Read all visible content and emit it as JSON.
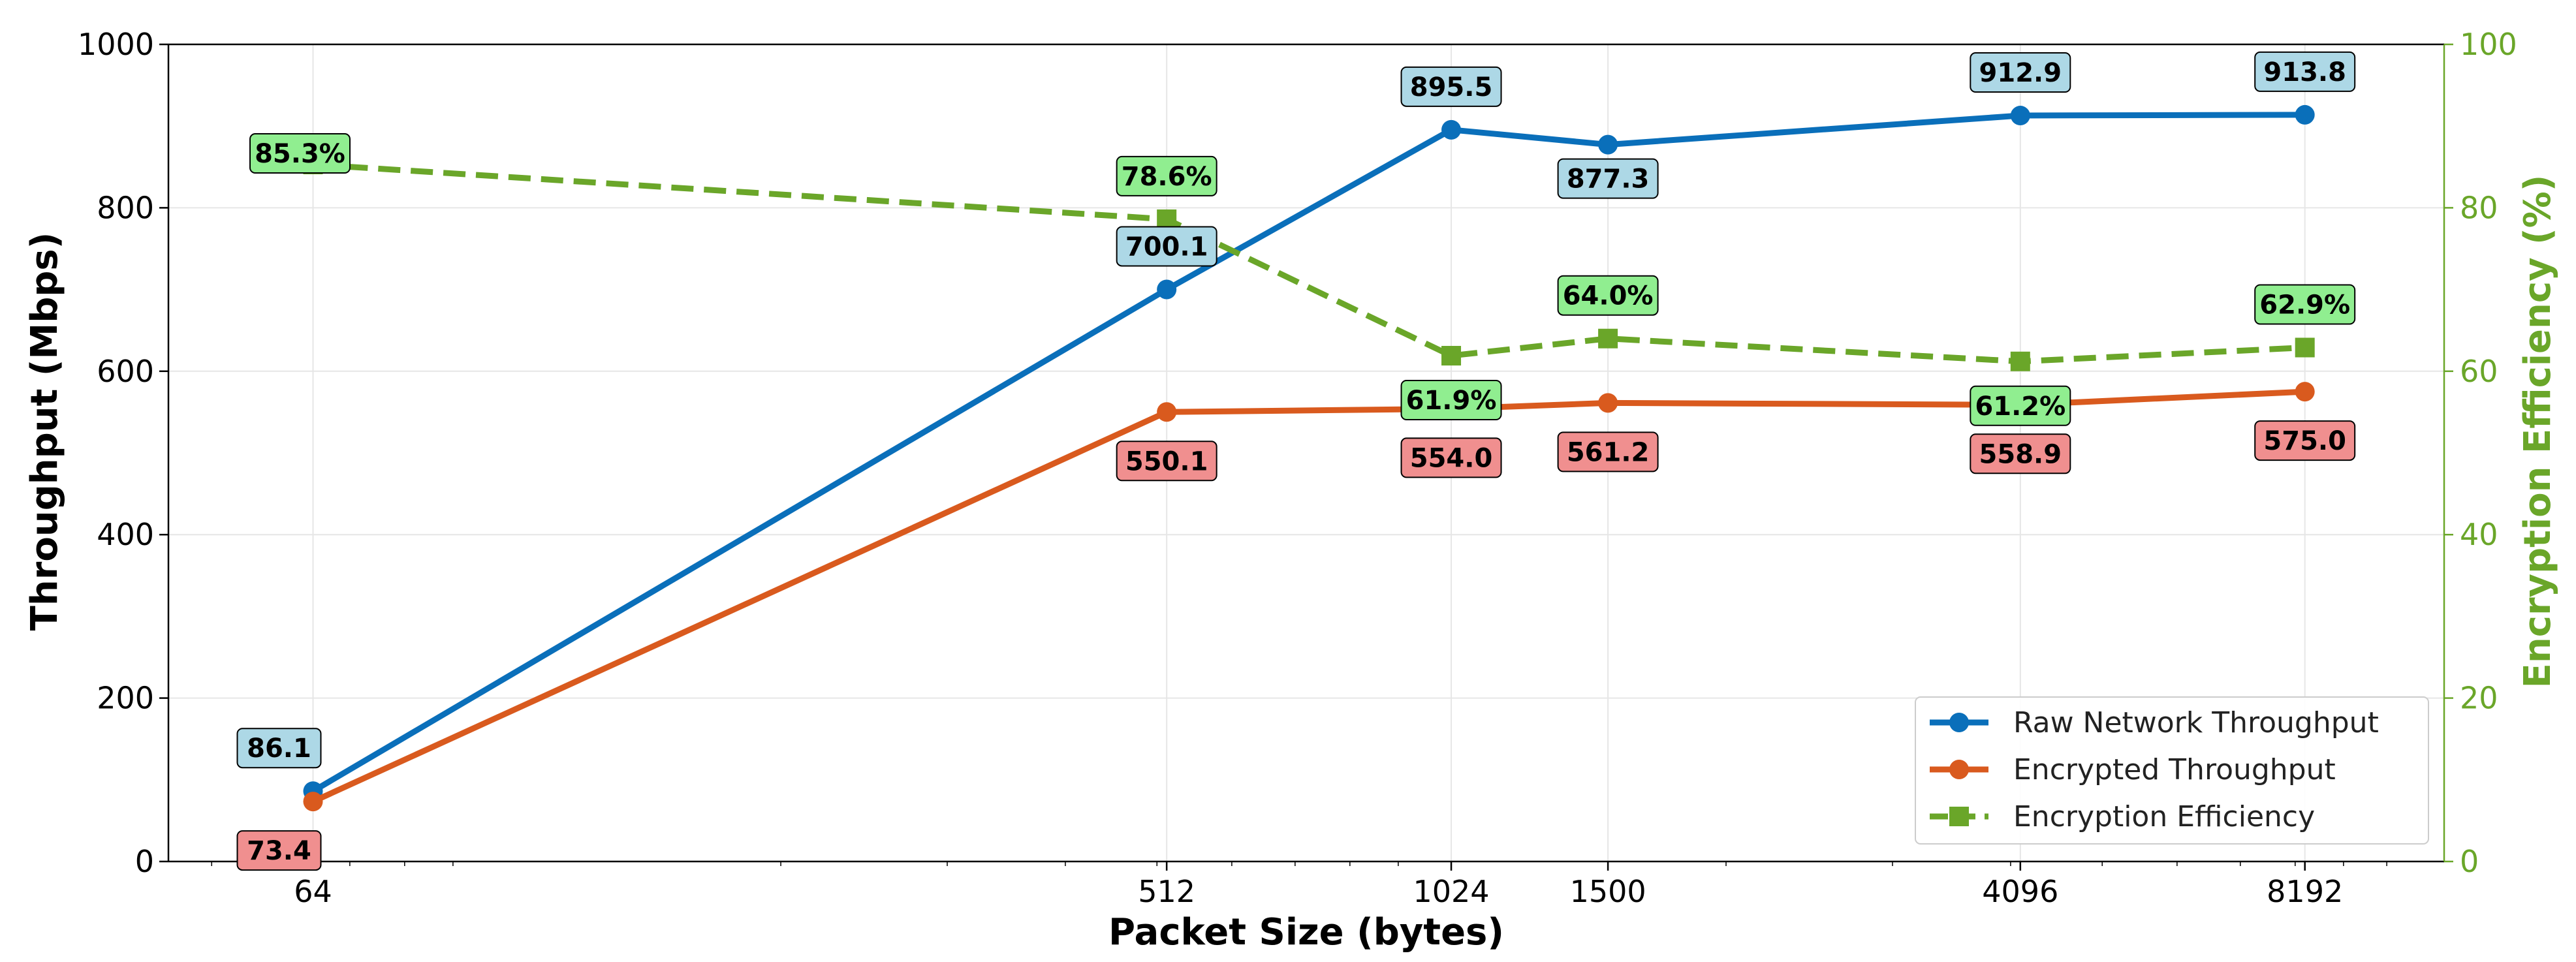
{
  "chart_data": {
    "type": "line",
    "title": "",
    "xlabel": "Packet Size (bytes)",
    "ylabel": "Throughput (Mbps)",
    "y2label": "Encryption Efficiency (%)",
    "x_scale": "log2",
    "x": [
      64,
      512,
      1024,
      1500,
      4096,
      8192
    ],
    "x_tick_labels": [
      "64",
      "512",
      "1024",
      "1500",
      "4096",
      "8192"
    ],
    "xlim": [
      45,
      11500
    ],
    "ylim": [
      0,
      1000
    ],
    "y2lim": [
      0,
      100
    ],
    "y_ticks": [
      0,
      200,
      400,
      600,
      800,
      1000
    ],
    "y2_ticks": [
      0,
      20,
      40,
      60,
      80,
      100
    ],
    "grid": true,
    "legend_position": "lower-right",
    "series": [
      {
        "name": "Raw Network Throughput",
        "axis": "left",
        "color": "#0a6fba",
        "marker": "circle",
        "dash": "solid",
        "values": [
          86.1,
          700.1,
          895.5,
          877.3,
          912.9,
          913.8
        ],
        "labels": [
          "86.1",
          "700.1",
          "895.5",
          "877.3",
          "912.9",
          "913.8"
        ],
        "label_bg": "#add8e6"
      },
      {
        "name": "Encrypted Throughput",
        "axis": "left",
        "color": "#d95a1e",
        "marker": "circle",
        "dash": "solid",
        "values": [
          73.4,
          550.1,
          554.0,
          561.2,
          558.9,
          575.0
        ],
        "labels": [
          "73.4",
          "550.1",
          "554.0",
          "561.2",
          "558.9",
          "575.0"
        ],
        "label_bg": "#f08f8f"
      },
      {
        "name": "Encryption Efficiency",
        "axis": "right",
        "color": "#6aa629",
        "marker": "square",
        "dash": "dashed",
        "values": [
          85.3,
          78.6,
          61.9,
          64.0,
          61.2,
          62.9
        ],
        "labels": [
          "85.3%",
          "78.6%",
          "61.9%",
          "64.0%",
          "61.2%",
          "62.9%"
        ],
        "label_bg": "#90ee90"
      }
    ]
  }
}
